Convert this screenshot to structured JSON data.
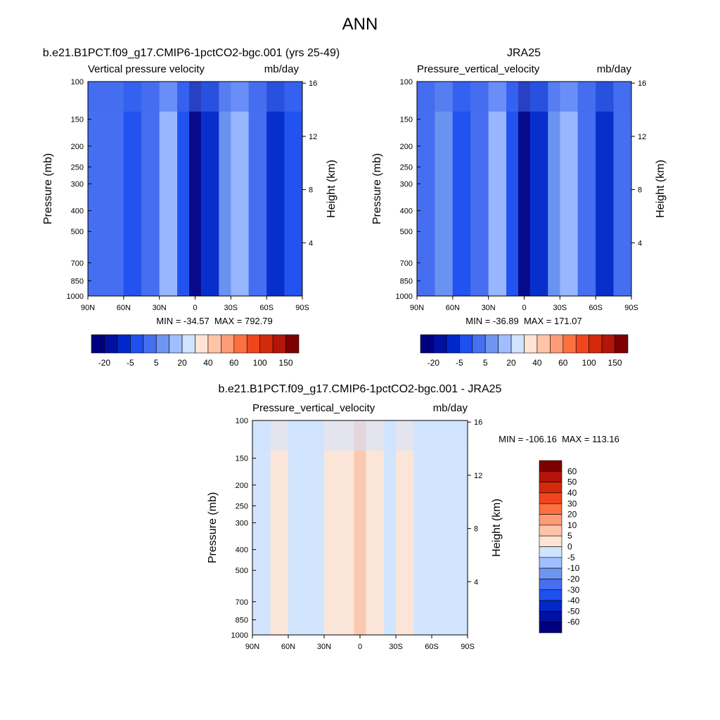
{
  "figure": {
    "title": "ANN"
  },
  "colors": {
    "abs": [
      "#00007f",
      "#0010a0",
      "#0028c8",
      "#1e50f0",
      "#466ef0",
      "#6e96f0",
      "#a0beff",
      "#d0e4ff",
      "#ffe4d4",
      "#ffc4a8",
      "#ff9c78",
      "#ff7040",
      "#f0461e",
      "#d22a0a",
      "#b4140a",
      "#7d0000"
    ],
    "diff": [
      "#00007f",
      "#0010a0",
      "#0028c8",
      "#1e50f0",
      "#466ef0",
      "#6e96f0",
      "#a0beff",
      "#d0e4ff",
      "#ffe4d4",
      "#ffc4a8",
      "#ff9c78",
      "#ff7040",
      "#f0461e",
      "#d22a0a",
      "#b4140a",
      "#7d0000"
    ]
  },
  "chart_data": [
    {
      "type": "heatmap",
      "id": "model",
      "title": "b.e21.B1PCT.f09_g17.CMIP6-1pctCO2-bgc.001 (yrs 25-49)",
      "left_label": "Vertical pressure velocity",
      "right_label": "mb/day",
      "xlabel": "",
      "ylabel": "Pressure (mb)",
      "y2label": "Height (km)",
      "x_ticks": [
        "90N",
        "60N",
        "30N",
        "0",
        "30S",
        "60S",
        "90S"
      ],
      "y_ticks": [
        100,
        150,
        200,
        250,
        300,
        400,
        500,
        700,
        850,
        1000
      ],
      "y2_ticks": [
        16,
        12,
        8,
        4
      ],
      "ylim": [
        100,
        1000
      ],
      "min_max_text": "MIN = -34.57  MAX = 792.79",
      "min": -34.57,
      "max": 792.79,
      "colorbar_labels": [
        "-20",
        "-5",
        "5",
        "20",
        "40",
        "60",
        "100",
        "150"
      ],
      "bands": [
        {
          "lat": 90,
          "level": 4
        },
        {
          "lat": 75,
          "level": 4
        },
        {
          "lat": 60,
          "level": 3
        },
        {
          "lat": 45,
          "level": 4
        },
        {
          "lat": 30,
          "level": 6
        },
        {
          "lat": 15,
          "level": 3
        },
        {
          "lat": 5,
          "level": 0
        },
        {
          "lat": -5,
          "level": 2
        },
        {
          "lat": -20,
          "level": 5
        },
        {
          "lat": -30,
          "level": 6
        },
        {
          "lat": -45,
          "level": 4
        },
        {
          "lat": -60,
          "level": 2
        },
        {
          "lat": -75,
          "level": 3
        },
        {
          "lat": -90,
          "level": 4
        }
      ]
    },
    {
      "type": "heatmap",
      "id": "obs",
      "title": "JRA25",
      "left_label": "Pressure_vertical_velocity",
      "right_label": "mb/day",
      "xlabel": "",
      "ylabel": "Pressure (mb)",
      "y2label": "Height (km)",
      "x_ticks": [
        "90N",
        "60N",
        "30N",
        "0",
        "30S",
        "60S",
        "90S"
      ],
      "y_ticks": [
        100,
        150,
        200,
        250,
        300,
        400,
        500,
        700,
        850,
        1000
      ],
      "y2_ticks": [
        16,
        12,
        8,
        4
      ],
      "ylim": [
        100,
        1000
      ],
      "min_max_text": "MIN = -36.89  MAX = 171.07",
      "min": -36.89,
      "max": 171.07,
      "colorbar_labels": [
        "-20",
        "-5",
        "5",
        "20",
        "40",
        "60",
        "100",
        "150"
      ],
      "bands": [
        {
          "lat": 90,
          "level": 4
        },
        {
          "lat": 75,
          "level": 5
        },
        {
          "lat": 60,
          "level": 3
        },
        {
          "lat": 45,
          "level": 4
        },
        {
          "lat": 30,
          "level": 6
        },
        {
          "lat": 15,
          "level": 3
        },
        {
          "lat": 5,
          "level": 0
        },
        {
          "lat": -5,
          "level": 2
        },
        {
          "lat": -20,
          "level": 5
        },
        {
          "lat": -30,
          "level": 6
        },
        {
          "lat": -45,
          "level": 4
        },
        {
          "lat": -60,
          "level": 2
        },
        {
          "lat": -75,
          "level": 4
        },
        {
          "lat": -90,
          "level": 4
        }
      ]
    },
    {
      "type": "heatmap",
      "id": "diff",
      "title": "b.e21.B1PCT.f09_g17.CMIP6-1pctCO2-bgc.001 - JRA25",
      "left_label": "Pressure_vertical_velocity",
      "right_label": "mb/day",
      "xlabel": "",
      "ylabel": "Pressure (mb)",
      "y2label": "Height (km)",
      "x_ticks": [
        "90N",
        "60N",
        "30N",
        "0",
        "30S",
        "60S",
        "90S"
      ],
      "y_ticks": [
        100,
        150,
        200,
        250,
        300,
        400,
        500,
        700,
        850,
        1000
      ],
      "y2_ticks": [
        16,
        12,
        8,
        4
      ],
      "ylim": [
        100,
        1000
      ],
      "min_max_text": "MIN = -106.16  MAX = 113.16",
      "min": -106.16,
      "max": 113.16,
      "colorbar_labels": [
        "60",
        "50",
        "40",
        "30",
        "20",
        "10",
        "5",
        "0",
        "-5",
        "-10",
        "-20",
        "-30",
        "-40",
        "-50",
        "-60"
      ],
      "bands": [
        {
          "lat": 90,
          "level": 7
        },
        {
          "lat": 75,
          "level": 8
        },
        {
          "lat": 60,
          "level": 7
        },
        {
          "lat": 45,
          "level": 7
        },
        {
          "lat": 30,
          "level": 8
        },
        {
          "lat": 15,
          "level": 8
        },
        {
          "lat": 5,
          "level": 9
        },
        {
          "lat": -5,
          "level": 8
        },
        {
          "lat": -20,
          "level": 7
        },
        {
          "lat": -30,
          "level": 8
        },
        {
          "lat": -45,
          "level": 7
        },
        {
          "lat": -60,
          "level": 7
        },
        {
          "lat": -75,
          "level": 7
        },
        {
          "lat": -90,
          "level": 7
        }
      ]
    }
  ]
}
